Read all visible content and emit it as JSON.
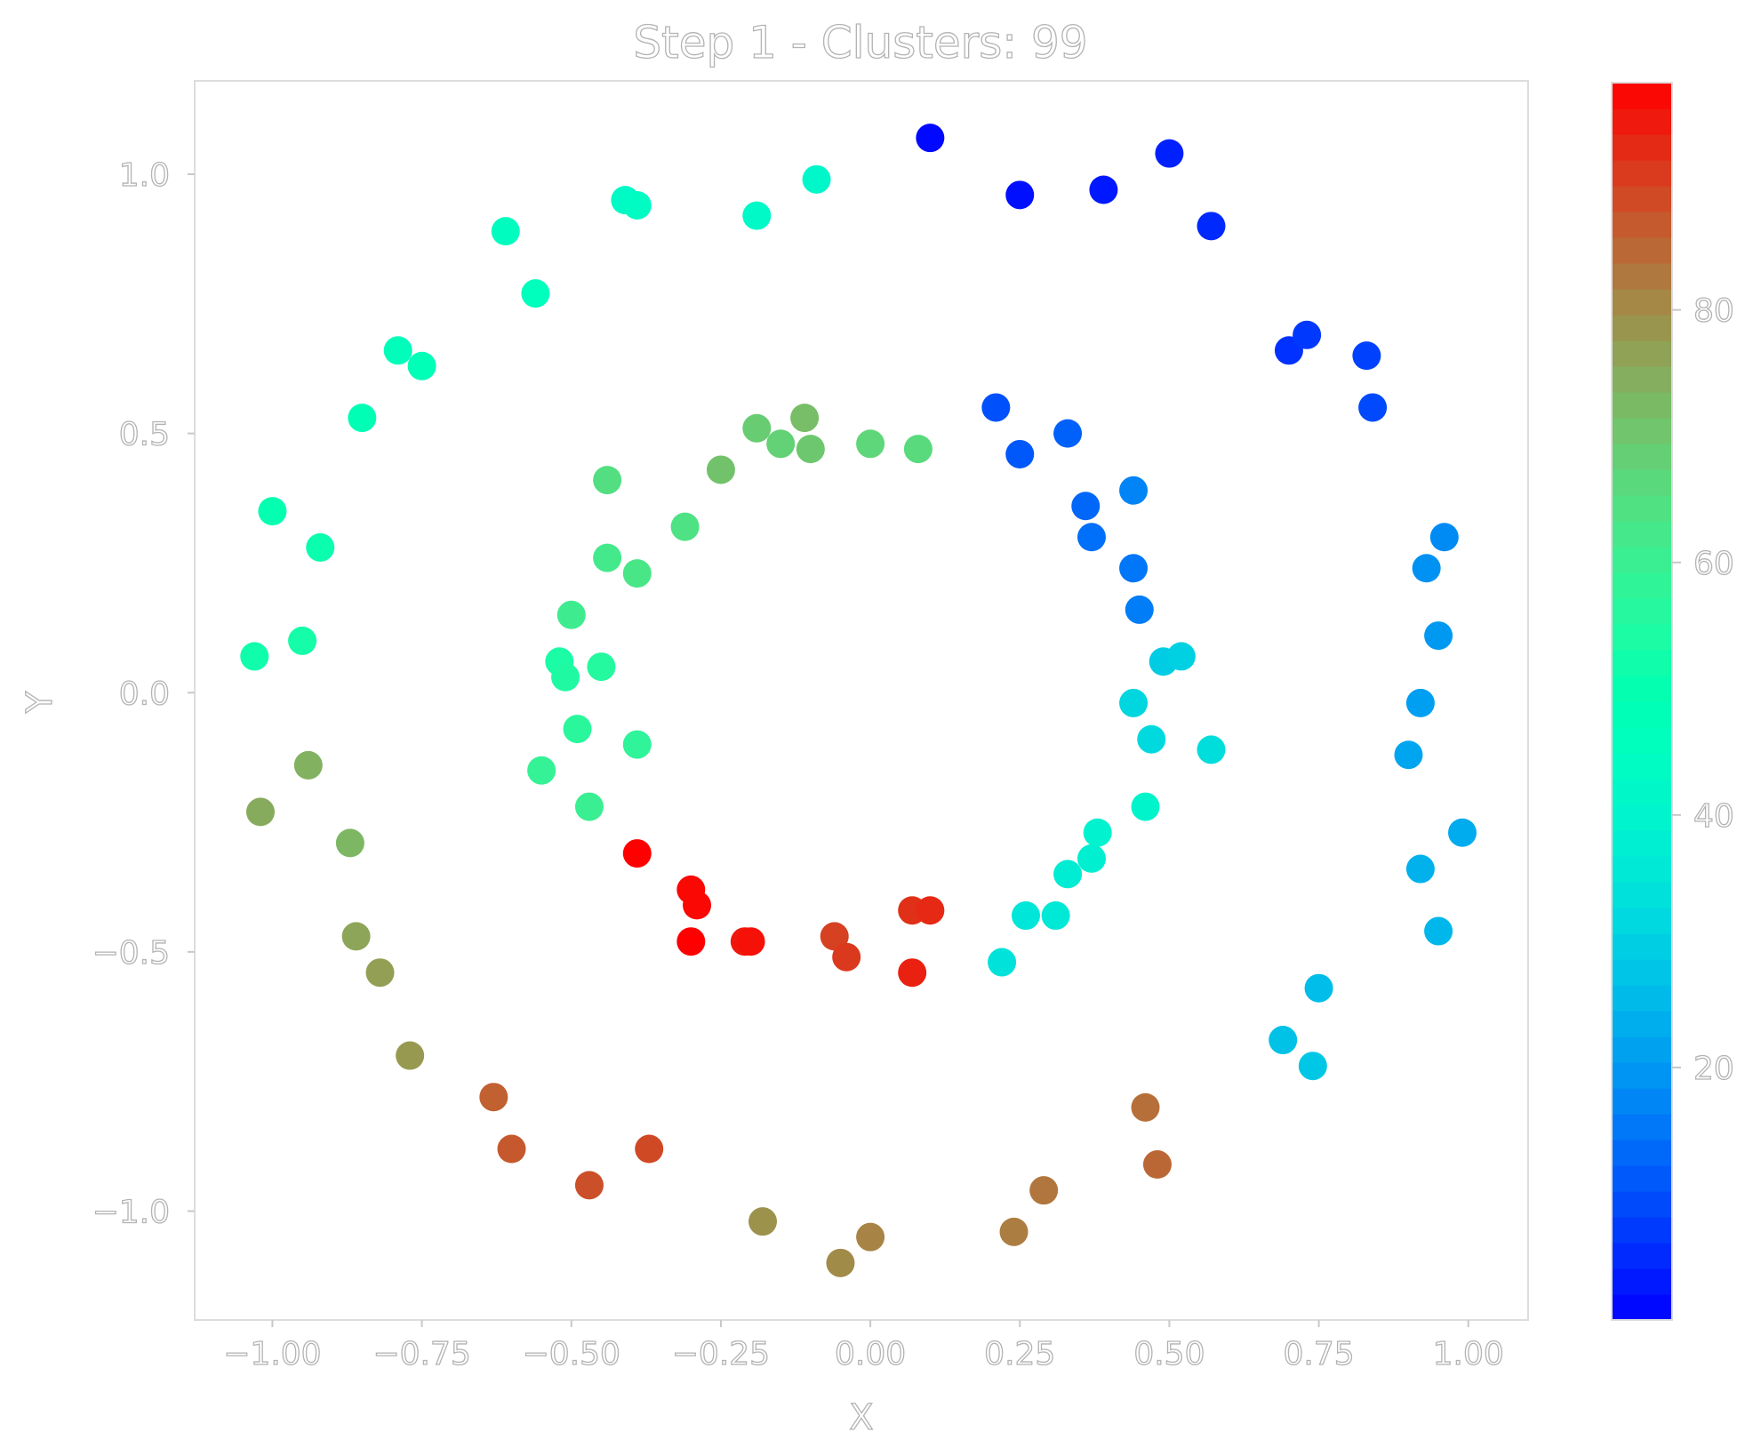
{
  "chart_data": {
    "type": "scatter",
    "title": "Step 1 - Clusters: 99",
    "xlabel": "X",
    "ylabel": "Y",
    "xlim": [
      -1.13,
      1.1
    ],
    "ylim": [
      -1.21,
      1.18
    ],
    "grid": false,
    "colormap": "rainbow",
    "x_ticks": [
      "−1.00",
      "−0.75",
      "−0.50",
      "−0.25",
      "0.00",
      "0.25",
      "0.50",
      "0.75",
      "1.00"
    ],
    "x_tick_values": [
      -1.0,
      -0.75,
      -0.5,
      -0.25,
      0.0,
      0.25,
      0.5,
      0.75,
      1.0
    ],
    "y_ticks": [
      "−1.0",
      "−0.5",
      "0.0",
      "0.5",
      "1.0"
    ],
    "y_tick_values": [
      -1.0,
      -0.5,
      0.0,
      0.5,
      1.0
    ],
    "colorbar": {
      "range": [
        0,
        98
      ],
      "ticks": [
        "20",
        "40",
        "60",
        "80"
      ],
      "tick_values": [
        20,
        40,
        60,
        80
      ]
    },
    "points": [
      {
        "x": 0.1,
        "y": 1.07,
        "c": 1
      },
      {
        "x": 0.25,
        "y": 0.96,
        "c": 2
      },
      {
        "x": 0.39,
        "y": 0.97,
        "c": 3
      },
      {
        "x": 0.5,
        "y": 1.04,
        "c": 4
      },
      {
        "x": 0.57,
        "y": 0.9,
        "c": 5
      },
      {
        "x": 0.7,
        "y": 0.66,
        "c": 6
      },
      {
        "x": 0.73,
        "y": 0.69,
        "c": 7
      },
      {
        "x": 0.83,
        "y": 0.65,
        "c": 8
      },
      {
        "x": 0.84,
        "y": 0.55,
        "c": 9
      },
      {
        "x": 0.21,
        "y": 0.55,
        "c": 10
      },
      {
        "x": 0.25,
        "y": 0.46,
        "c": 11
      },
      {
        "x": 0.33,
        "y": 0.5,
        "c": 12
      },
      {
        "x": 0.36,
        "y": 0.36,
        "c": 13
      },
      {
        "x": 0.37,
        "y": 0.3,
        "c": 14
      },
      {
        "x": 0.44,
        "y": 0.24,
        "c": 15
      },
      {
        "x": 0.45,
        "y": 0.16,
        "c": 16
      },
      {
        "x": 0.44,
        "y": 0.39,
        "c": 17
      },
      {
        "x": 0.96,
        "y": 0.3,
        "c": 18
      },
      {
        "x": 0.93,
        "y": 0.24,
        "c": 19
      },
      {
        "x": 0.95,
        "y": 0.11,
        "c": 20
      },
      {
        "x": 0.92,
        "y": -0.02,
        "c": 21
      },
      {
        "x": 0.9,
        "y": -0.12,
        "c": 22
      },
      {
        "x": 0.99,
        "y": -0.27,
        "c": 23
      },
      {
        "x": 0.92,
        "y": -0.34,
        "c": 24
      },
      {
        "x": 0.95,
        "y": -0.46,
        "c": 25
      },
      {
        "x": 0.75,
        "y": -0.57,
        "c": 26
      },
      {
        "x": 0.69,
        "y": -0.67,
        "c": 27
      },
      {
        "x": 0.74,
        "y": -0.72,
        "c": 28
      },
      {
        "x": 0.49,
        "y": 0.06,
        "c": 29
      },
      {
        "x": 0.52,
        "y": 0.07,
        "c": 30
      },
      {
        "x": 0.44,
        "y": -0.02,
        "c": 31
      },
      {
        "x": 0.47,
        "y": -0.09,
        "c": 32
      },
      {
        "x": 0.57,
        "y": -0.11,
        "c": 33
      },
      {
        "x": 0.22,
        "y": -0.52,
        "c": 34
      },
      {
        "x": 0.26,
        "y": -0.43,
        "c": 35
      },
      {
        "x": 0.31,
        "y": -0.43,
        "c": 36
      },
      {
        "x": 0.33,
        "y": -0.35,
        "c": 37
      },
      {
        "x": 0.37,
        "y": -0.32,
        "c": 38
      },
      {
        "x": 0.38,
        "y": -0.27,
        "c": 39
      },
      {
        "x": 0.46,
        "y": -0.22,
        "c": 40
      },
      {
        "x": -0.09,
        "y": 0.99,
        "c": 41
      },
      {
        "x": -0.19,
        "y": 0.92,
        "c": 42
      },
      {
        "x": -0.41,
        "y": 0.95,
        "c": 43
      },
      {
        "x": -0.39,
        "y": 0.94,
        "c": 44
      },
      {
        "x": -0.61,
        "y": 0.89,
        "c": 45
      },
      {
        "x": -0.56,
        "y": 0.77,
        "c": 46
      },
      {
        "x": -0.79,
        "y": 0.66,
        "c": 47
      },
      {
        "x": -0.75,
        "y": 0.63,
        "c": 48
      },
      {
        "x": -0.85,
        "y": 0.53,
        "c": 49
      },
      {
        "x": -1.0,
        "y": 0.35,
        "c": 50
      },
      {
        "x": -0.92,
        "y": 0.28,
        "c": 51
      },
      {
        "x": -1.03,
        "y": 0.07,
        "c": 52
      },
      {
        "x": -0.95,
        "y": 0.1,
        "c": 53
      },
      {
        "x": -0.52,
        "y": 0.06,
        "c": 54
      },
      {
        "x": -0.51,
        "y": 0.03,
        "c": 55
      },
      {
        "x": -0.45,
        "y": 0.05,
        "c": 56
      },
      {
        "x": -0.49,
        "y": -0.07,
        "c": 57
      },
      {
        "x": -0.39,
        "y": -0.1,
        "c": 58
      },
      {
        "x": -0.55,
        "y": -0.15,
        "c": 59
      },
      {
        "x": -0.47,
        "y": -0.22,
        "c": 60
      },
      {
        "x": -0.5,
        "y": 0.15,
        "c": 61
      },
      {
        "x": -0.44,
        "y": 0.26,
        "c": 62
      },
      {
        "x": -0.39,
        "y": 0.23,
        "c": 63
      },
      {
        "x": -0.31,
        "y": 0.32,
        "c": 64
      },
      {
        "x": -0.44,
        "y": 0.41,
        "c": 65
      },
      {
        "x": 0.08,
        "y": 0.47,
        "c": 66
      },
      {
        "x": 0.0,
        "y": 0.48,
        "c": 67
      },
      {
        "x": -0.15,
        "y": 0.48,
        "c": 68
      },
      {
        "x": -0.19,
        "y": 0.51,
        "c": 69
      },
      {
        "x": -0.1,
        "y": 0.47,
        "c": 70
      },
      {
        "x": -0.25,
        "y": 0.43,
        "c": 71
      },
      {
        "x": -0.11,
        "y": 0.53,
        "c": 72
      },
      {
        "x": -0.87,
        "y": -0.29,
        "c": 73
      },
      {
        "x": -0.94,
        "y": -0.14,
        "c": 74
      },
      {
        "x": -1.02,
        "y": -0.23,
        "c": 75
      },
      {
        "x": -0.86,
        "y": -0.47,
        "c": 76
      },
      {
        "x": -0.82,
        "y": -0.54,
        "c": 77
      },
      {
        "x": -0.77,
        "y": -0.7,
        "c": 78
      },
      {
        "x": -0.18,
        "y": -1.02,
        "c": 79
      },
      {
        "x": -0.05,
        "y": -1.1,
        "c": 80
      },
      {
        "x": 0.0,
        "y": -1.05,
        "c": 81
      },
      {
        "x": 0.24,
        "y": -1.04,
        "c": 82
      },
      {
        "x": 0.29,
        "y": -0.96,
        "c": 83
      },
      {
        "x": 0.46,
        "y": -0.8,
        "c": 84
      },
      {
        "x": 0.48,
        "y": -0.91,
        "c": 85
      },
      {
        "x": -0.63,
        "y": -0.78,
        "c": 86
      },
      {
        "x": -0.6,
        "y": -0.88,
        "c": 87
      },
      {
        "x": -0.47,
        "y": -0.95,
        "c": 88
      },
      {
        "x": -0.37,
        "y": -0.88,
        "c": 89
      },
      {
        "x": -0.06,
        "y": -0.47,
        "c": 90
      },
      {
        "x": -0.04,
        "y": -0.51,
        "c": 91
      },
      {
        "x": 0.07,
        "y": -0.42,
        "c": 92
      },
      {
        "x": 0.1,
        "y": -0.42,
        "c": 93
      },
      {
        "x": 0.07,
        "y": -0.54,
        "c": 94
      },
      {
        "x": -0.21,
        "y": -0.48,
        "c": 95
      },
      {
        "x": -0.2,
        "y": -0.48,
        "c": 96
      },
      {
        "x": -0.3,
        "y": -0.38,
        "c": 97
      },
      {
        "x": -0.29,
        "y": -0.41,
        "c": 97
      },
      {
        "x": -0.3,
        "y": -0.48,
        "c": 98
      },
      {
        "x": -0.39,
        "y": -0.31,
        "c": 98
      }
    ]
  }
}
